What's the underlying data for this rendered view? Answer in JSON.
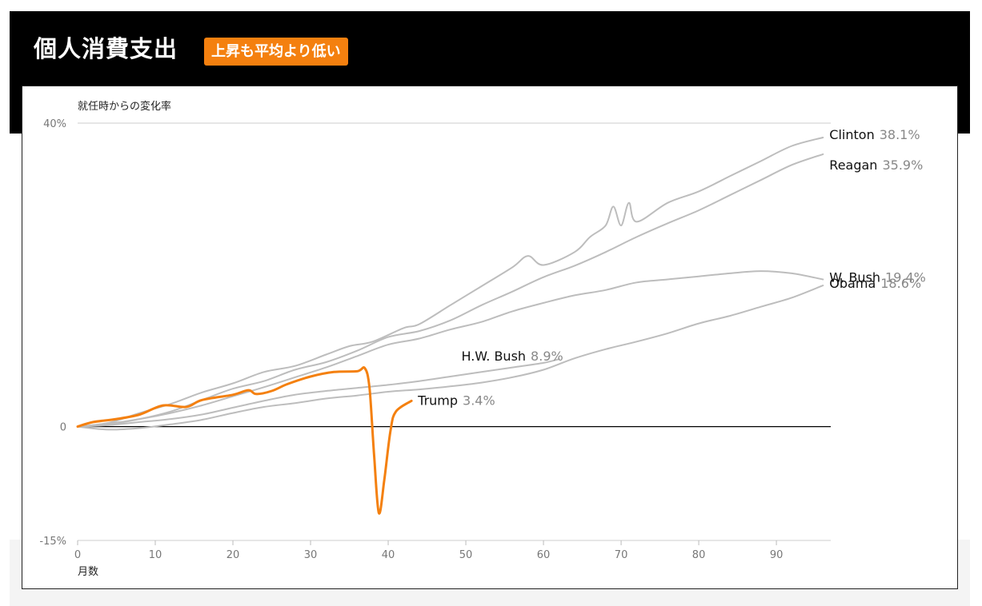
{
  "header": {
    "title": "個人消費支出",
    "badge": "上昇も平均より低い"
  },
  "colors": {
    "highlight": "#f4800f",
    "others": "#bdbdbd",
    "zero_line": "#000000",
    "value_text": "#888888"
  },
  "chart_data": {
    "type": "line",
    "ylabel": "就任時からの変化率",
    "xlabel": "月数",
    "xlim": [
      0,
      97
    ],
    "ylim": [
      -15,
      40
    ],
    "x_ticks": [
      "0",
      "10",
      "20",
      "30",
      "40",
      "50",
      "60",
      "70",
      "80",
      "90"
    ],
    "y_ticks": [
      "40%",
      "0",
      "-15%"
    ],
    "series": [
      {
        "name": "Clinton",
        "value_label": "38.1%",
        "highlight": false,
        "points": [
          [
            0,
            0
          ],
          [
            4,
            0.5
          ],
          [
            8,
            1.8
          ],
          [
            12,
            3
          ],
          [
            16,
            4.5
          ],
          [
            20,
            5.7
          ],
          [
            24,
            7.2
          ],
          [
            28,
            8
          ],
          [
            32,
            9.5
          ],
          [
            35,
            10.6
          ],
          [
            38,
            11.2
          ],
          [
            42,
            13
          ],
          [
            44,
            13.5
          ],
          [
            48,
            16
          ],
          [
            52,
            18.5
          ],
          [
            56,
            21
          ],
          [
            58,
            22.5
          ],
          [
            60,
            21.3
          ],
          [
            64,
            23
          ],
          [
            66,
            25
          ],
          [
            68,
            26.5
          ],
          [
            69,
            29
          ],
          [
            70,
            26.5
          ],
          [
            71,
            29.5
          ],
          [
            72,
            27
          ],
          [
            76,
            29.5
          ],
          [
            80,
            31
          ],
          [
            84,
            33
          ],
          [
            88,
            35
          ],
          [
            92,
            37
          ],
          [
            96,
            38.1
          ]
        ]
      },
      {
        "name": "Reagan",
        "value_label": "35.9%",
        "highlight": false,
        "points": [
          [
            0,
            0
          ],
          [
            4,
            0.3
          ],
          [
            8,
            1
          ],
          [
            12,
            2
          ],
          [
            16,
            3.5
          ],
          [
            20,
            5
          ],
          [
            24,
            6
          ],
          [
            28,
            7.5
          ],
          [
            32,
            8.5
          ],
          [
            36,
            10
          ],
          [
            40,
            11.8
          ],
          [
            44,
            12.6
          ],
          [
            48,
            14
          ],
          [
            52,
            16
          ],
          [
            56,
            17.8
          ],
          [
            60,
            19.7
          ],
          [
            64,
            21.2
          ],
          [
            68,
            23
          ],
          [
            72,
            25
          ],
          [
            76,
            26.8
          ],
          [
            80,
            28.5
          ],
          [
            84,
            30.5
          ],
          [
            88,
            32.5
          ],
          [
            92,
            34.5
          ],
          [
            96,
            35.9
          ]
        ]
      },
      {
        "name": "W. Bush",
        "value_label": "19.4%",
        "highlight": false,
        "points": [
          [
            0,
            0
          ],
          [
            4,
            0.4
          ],
          [
            8,
            1
          ],
          [
            12,
            1.8
          ],
          [
            16,
            2.8
          ],
          [
            20,
            4
          ],
          [
            24,
            5.2
          ],
          [
            28,
            6.5
          ],
          [
            32,
            7.8
          ],
          [
            36,
            9.3
          ],
          [
            40,
            10.8
          ],
          [
            44,
            11.6
          ],
          [
            48,
            12.8
          ],
          [
            52,
            13.8
          ],
          [
            56,
            15.2
          ],
          [
            60,
            16.3
          ],
          [
            64,
            17.3
          ],
          [
            68,
            18
          ],
          [
            72,
            19
          ],
          [
            76,
            19.4
          ],
          [
            80,
            19.8
          ],
          [
            84,
            20.2
          ],
          [
            88,
            20.5
          ],
          [
            92,
            20.2
          ],
          [
            96,
            19.4
          ]
        ]
      },
      {
        "name": "Obama",
        "value_label": "18.6%",
        "highlight": false,
        "points": [
          [
            0,
            0
          ],
          [
            4,
            -0.4
          ],
          [
            8,
            -0.2
          ],
          [
            12,
            0.3
          ],
          [
            16,
            0.9
          ],
          [
            20,
            1.8
          ],
          [
            24,
            2.6
          ],
          [
            28,
            3.1
          ],
          [
            32,
            3.7
          ],
          [
            36,
            4.1
          ],
          [
            40,
            4.6
          ],
          [
            44,
            4.9
          ],
          [
            48,
            5.3
          ],
          [
            52,
            5.8
          ],
          [
            56,
            6.5
          ],
          [
            60,
            7.5
          ],
          [
            64,
            9
          ],
          [
            68,
            10.2
          ],
          [
            72,
            11.2
          ],
          [
            76,
            12.3
          ],
          [
            80,
            13.6
          ],
          [
            84,
            14.6
          ],
          [
            88,
            15.8
          ],
          [
            92,
            17
          ],
          [
            96,
            18.6
          ]
        ]
      },
      {
        "name": "H.W. Bush",
        "value_label": "8.9%",
        "highlight": false,
        "points": [
          [
            0,
            0
          ],
          [
            4,
            0.2
          ],
          [
            8,
            0.6
          ],
          [
            12,
            1
          ],
          [
            16,
            1.6
          ],
          [
            20,
            2.5
          ],
          [
            24,
            3.4
          ],
          [
            28,
            4.2
          ],
          [
            32,
            4.7
          ],
          [
            36,
            5.1
          ],
          [
            40,
            5.5
          ],
          [
            44,
            6
          ],
          [
            48,
            6.6
          ],
          [
            52,
            7.2
          ],
          [
            56,
            7.8
          ],
          [
            60,
            8.4
          ],
          [
            62,
            8.9
          ]
        ]
      },
      {
        "name": "Trump",
        "value_label": "3.4%",
        "highlight": true,
        "points": [
          [
            0,
            0
          ],
          [
            2,
            0.6
          ],
          [
            5,
            1
          ],
          [
            8,
            1.6
          ],
          [
            11,
            2.8
          ],
          [
            14,
            2.6
          ],
          [
            16,
            3.5
          ],
          [
            20,
            4.2
          ],
          [
            22,
            4.8
          ],
          [
            23,
            4.3
          ],
          [
            25,
            4.7
          ],
          [
            27,
            5.6
          ],
          [
            30,
            6.6
          ],
          [
            33,
            7.2
          ],
          [
            36,
            7.3
          ],
          [
            37,
            7.7
          ],
          [
            37.6,
            5
          ],
          [
            38.2,
            -4
          ],
          [
            38.8,
            -11.4
          ],
          [
            39.5,
            -7
          ],
          [
            40.3,
            -0.5
          ],
          [
            41,
            2
          ],
          [
            43,
            3.4
          ]
        ]
      }
    ]
  }
}
